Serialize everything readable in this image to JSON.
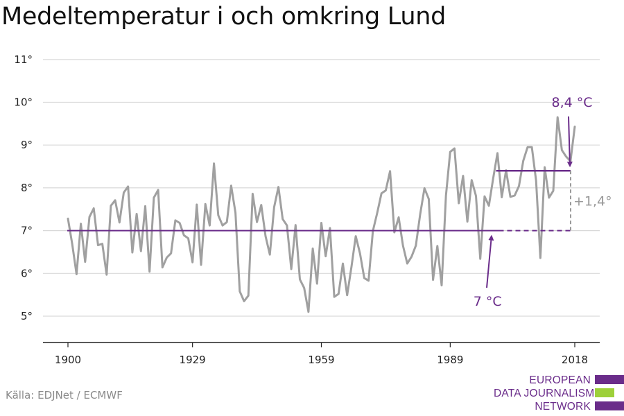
{
  "title": "Medeltemperatur i och omkring Lund",
  "source": "Källa: EDJNet / ECMWF",
  "logo": {
    "lines": [
      "EUROPEAN",
      "DATA JOURNALISM",
      "NETWORK"
    ],
    "colors": [
      "#6a2c8a",
      "#9dd03a",
      "#6a2c8a"
    ]
  },
  "colors": {
    "series": "#a0a0a0",
    "baseline": "#6a2c8a",
    "grid": "#d9d9d9",
    "axis": "#222222",
    "delta": "#9a9a9a"
  },
  "chart_data": {
    "type": "line",
    "title": "Medeltemperatur i och omkring Lund",
    "xlabel": "",
    "ylabel": "",
    "xlim": [
      1900,
      2018
    ],
    "ylim": [
      5,
      11
    ],
    "grid": true,
    "x_ticks": [
      1900,
      1929,
      1959,
      1989,
      2018
    ],
    "x_tick_labels": [
      "1900",
      "1929",
      "1959",
      "1989",
      "2018"
    ],
    "y_ticks": [
      5,
      6,
      7,
      8,
      9,
      10,
      11
    ],
    "y_tick_labels": [
      "5°",
      "6°",
      "7°",
      "8°",
      "9°",
      "10°",
      "11°"
    ],
    "series": [
      {
        "name": "",
        "x": [
          1900,
          1901,
          1902,
          1903,
          1904,
          1905,
          1906,
          1907,
          1908,
          1909,
          1910,
          1911,
          1912,
          1913,
          1914,
          1915,
          1916,
          1917,
          1918,
          1919,
          1920,
          1921,
          1922,
          1923,
          1924,
          1925,
          1926,
          1927,
          1928,
          1929,
          1930,
          1931,
          1932,
          1933,
          1934,
          1935,
          1936,
          1937,
          1938,
          1939,
          1940,
          1941,
          1942,
          1943,
          1944,
          1945,
          1946,
          1947,
          1948,
          1949,
          1950,
          1951,
          1952,
          1953,
          1954,
          1955,
          1956,
          1957,
          1958,
          1959,
          1960,
          1961,
          1962,
          1963,
          1964,
          1965,
          1966,
          1967,
          1968,
          1969,
          1970,
          1971,
          1972,
          1973,
          1974,
          1975,
          1976,
          1977,
          1978,
          1979,
          1980,
          1981,
          1982,
          1983,
          1984,
          1985,
          1986,
          1987,
          1988,
          1989,
          1990,
          1991,
          1992,
          1993,
          1994,
          1995,
          1996,
          1997,
          1998,
          1999,
          2000,
          2001,
          2002,
          2003,
          2004,
          2005,
          2006,
          2007,
          2008,
          2009,
          2010,
          2011,
          2012,
          2013,
          2014,
          2015,
          2016,
          2017,
          2018
        ],
        "y": [
          7.28,
          6.68,
          5.98,
          7.16,
          6.27,
          7.32,
          7.52,
          6.66,
          6.69,
          5.97,
          7.58,
          7.71,
          7.19,
          7.89,
          8.03,
          6.49,
          7.39,
          6.52,
          7.57,
          6.04,
          7.77,
          7.95,
          6.14,
          6.37,
          6.47,
          7.24,
          7.18,
          6.89,
          6.82,
          6.26,
          7.61,
          6.2,
          7.62,
          7.12,
          8.57,
          7.36,
          7.12,
          7.2,
          8.05,
          7.42,
          5.58,
          5.35,
          5.48,
          7.86,
          7.2,
          7.6,
          6.87,
          6.44,
          7.55,
          8.02,
          7.27,
          7.12,
          6.1,
          7.13,
          5.86,
          5.66,
          5.1,
          6.58,
          5.76,
          7.18,
          6.4,
          7.06,
          5.45,
          5.52,
          6.23,
          5.49,
          6.15,
          6.87,
          6.46,
          5.89,
          5.83,
          6.99,
          7.41,
          7.87,
          7.94,
          8.39,
          6.96,
          7.31,
          6.65,
          6.23,
          6.39,
          6.65,
          7.38,
          7.99,
          7.74,
          5.85,
          6.64,
          5.72,
          7.82,
          8.84,
          8.92,
          7.64,
          8.28,
          7.21,
          8.18,
          7.81,
          6.34,
          7.8,
          7.58,
          8.22,
          8.81,
          7.78,
          8.41,
          7.79,
          7.82,
          8.04,
          8.63,
          8.95,
          8.95,
          8.17,
          6.36,
          8.48,
          7.77,
          7.93,
          9.65,
          8.88,
          8.73,
          8.62,
          9.43
        ]
      }
    ],
    "annotations": {
      "baseline_label": "7 °C",
      "baseline_value": 7.0,
      "recent_label": "8,4 °C",
      "recent_value": 8.4,
      "recent_start": 2000,
      "difference_label": "+1,4°"
    }
  }
}
